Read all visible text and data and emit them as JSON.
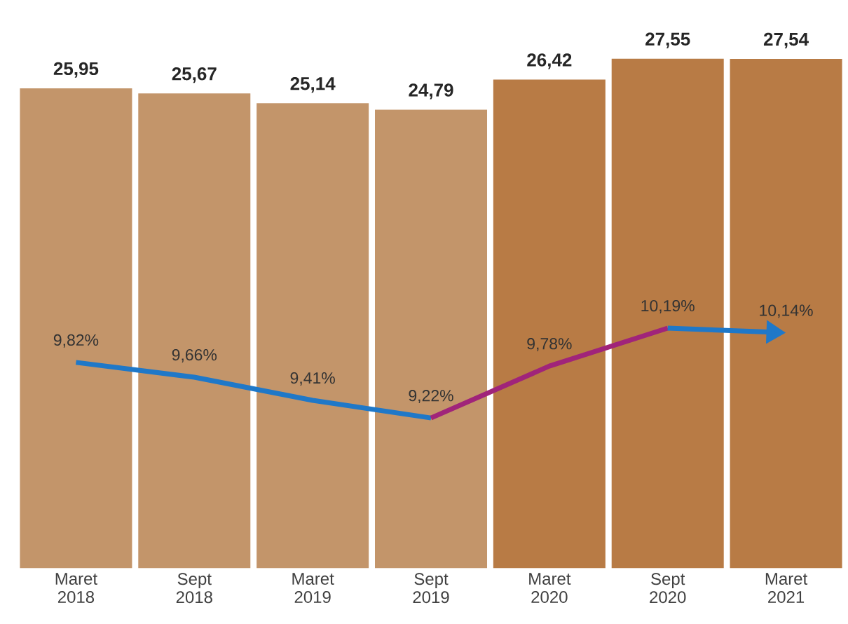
{
  "chart_data": {
    "type": "bar",
    "categories": [
      "Maret 2018",
      "Sept 2018",
      "Maret 2019",
      "Sept 2019",
      "Maret 2020",
      "Sept 2020",
      "Maret 2021"
    ],
    "tick_labels": "x",
    "series": [
      {
        "colors": [
          "#c3956a",
          "#c3956a",
          "#c3956a",
          "#c3956a",
          "#b87b45",
          "#b87b45",
          "#b87b45"
        ],
        "values": [
          25.95,
          25.67,
          25.14,
          24.79,
          26.42,
          27.55,
          27.54
        ],
        "value_labels": [
          "25,95",
          "25,67",
          "25,14",
          "24,79",
          "26,42",
          "27,55",
          "27,54"
        ]
      },
      {
        "type": "line",
        "axis": "y2",
        "color": "#1f78c8",
        "values": [
          9.82,
          9.66,
          9.41,
          9.22,
          null,
          null,
          null
        ],
        "value_labels": [
          "9,82%",
          "9,66%",
          "9,41%",
          "9,22%",
          null,
          null,
          null
        ]
      },
      {
        "type": "line",
        "axis": "y2",
        "color": "#a0247a",
        "values": [
          null,
          null,
          null,
          9.22,
          9.78,
          10.19,
          null
        ],
        "value_labels": [
          null,
          null,
          null,
          null,
          "9,78%",
          "10,19%",
          null
        ]
      },
      {
        "type": "line",
        "axis": "y2",
        "color": "#1f78c8",
        "values": [
          null,
          null,
          null,
          null,
          null,
          10.19,
          10.14
        ],
        "value_labels": [
          null,
          null,
          null,
          null,
          null,
          null,
          "10,14%"
        ]
      }
    ]
  }
}
